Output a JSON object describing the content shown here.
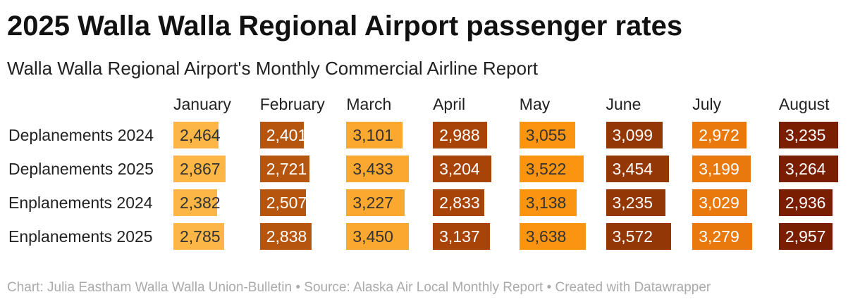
{
  "chart_data": {
    "type": "table",
    "title": "2025 Walla Walla Regional Airport passenger rates",
    "subtitle": "Walla Walla Regional Airport's Monthly Commercial Airline Report",
    "columns": [
      "January",
      "February",
      "March",
      "April",
      "May",
      "June",
      "July",
      "August"
    ],
    "rows": [
      {
        "label": "Deplanements 2024",
        "values": [
          2464,
          2401,
          3101,
          2988,
          3055,
          3099,
          2972,
          3235
        ]
      },
      {
        "label": "Deplanements 2025",
        "values": [
          2867,
          2721,
          3433,
          3204,
          3522,
          3454,
          3199,
          3264
        ]
      },
      {
        "label": "Enplanements 2024",
        "values": [
          2382,
          2507,
          3227,
          2833,
          3138,
          3235,
          3029,
          2936
        ]
      },
      {
        "label": "Enplanements 2025",
        "values": [
          2785,
          2838,
          3450,
          3137,
          3638,
          3572,
          3279,
          2957
        ]
      }
    ],
    "column_colors": [
      "#fbb645",
      "#b6560e",
      "#fba830",
      "#a84407",
      "#fb9410",
      "#933704",
      "#e9790c",
      "#7a1e02"
    ],
    "value_scale_max": 3638,
    "footer": "Chart: Julia Eastham Walla Walla Union-Bulletin • Source: Alaska Air Local Monthly Report • Created with Datawrapper"
  }
}
